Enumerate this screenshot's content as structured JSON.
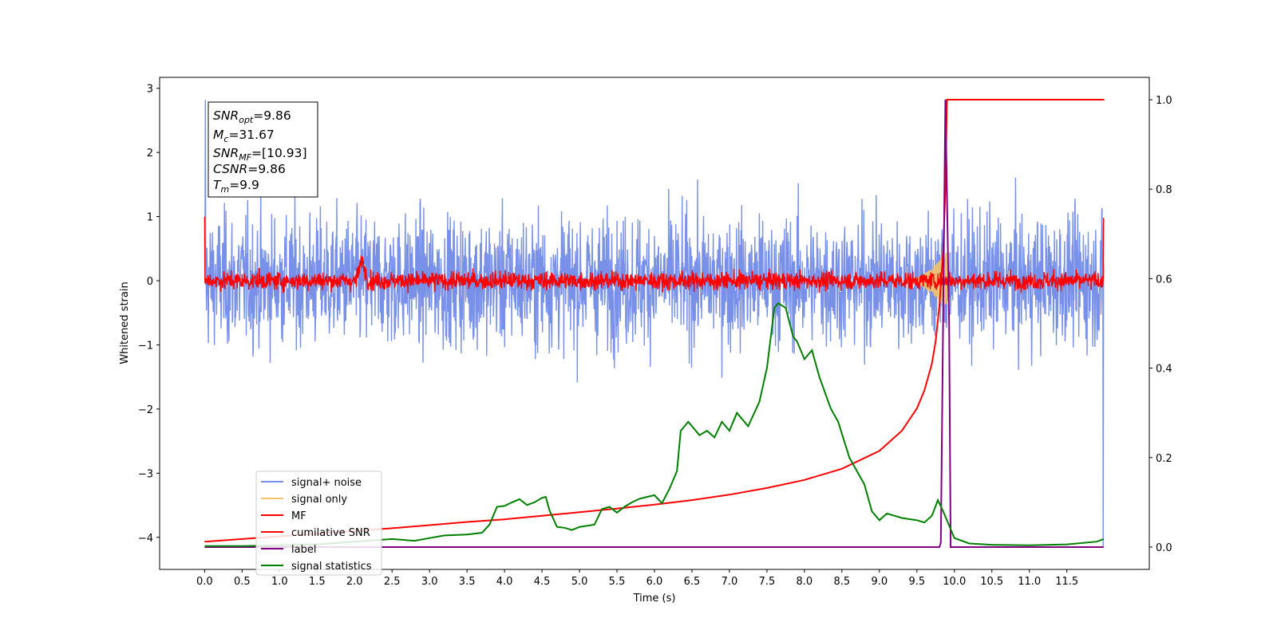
{
  "chart_data": {
    "type": "line",
    "title": "",
    "xlabel": "Time (s)",
    "ylabel": "Whitened strain",
    "ylabel_right": "",
    "xlim": [
      -0.6,
      12.6
    ],
    "ylim": [
      -4.5,
      3.17
    ],
    "ylim_right": [
      -0.05,
      1.05
    ],
    "x_ticks": [
      "0.0",
      "0.5",
      "1.0",
      "1.5",
      "2.0",
      "2.5",
      "3.0",
      "3.5",
      "4.0",
      "4.5",
      "5.0",
      "5.5",
      "6.0",
      "6.5",
      "7.0",
      "7.5",
      "8.0",
      "8.5",
      "9.0",
      "9.5",
      "10.0",
      "10.5",
      "11.0",
      "11.5"
    ],
    "y_ticks": [
      "3",
      "2",
      "1",
      "0",
      "−1",
      "−2",
      "−3",
      "−4"
    ],
    "y_ticks_right": [
      "1.0",
      "0.8",
      "0.6",
      "0.4",
      "0.2",
      "0.0"
    ],
    "grid": false,
    "legend_position": "lower-left",
    "annotation": {
      "lines": [
        {
          "label": "SNR",
          "sub": "opt",
          "value": "=9.86"
        },
        {
          "label": "M",
          "sub": "c",
          "value": "=31.67"
        },
        {
          "label": "SNR",
          "sub": "MF",
          "value": "=[10.93]"
        },
        {
          "label": "CSNR",
          "sub": "",
          "value": "=9.86"
        },
        {
          "label": "T",
          "sub": "m",
          "value": "=9.9"
        }
      ]
    },
    "series": [
      {
        "name": "signal+ noise",
        "axis": "left",
        "color": "#7890e8",
        "style": "noise",
        "x_start": 0.0,
        "x_end": 11.99,
        "std": 0.5,
        "max": 2.82,
        "min": -4.15
      },
      {
        "name": "signal only",
        "axis": "left",
        "color": "#f5c16c",
        "style": "chirp",
        "x_start": 9.3,
        "x_end": 9.9,
        "max_amplitude": 0.45
      },
      {
        "name": "MF",
        "axis": "left",
        "color": "#ff0000",
        "style": "noise",
        "x_start": 0.0,
        "x_end": 11.99,
        "std": 0.07,
        "start_value": 1.0,
        "end_value": 0.98,
        "bump_x": 2.1,
        "bump_value": 0.38
      },
      {
        "name": "cumilative SNR",
        "axis": "right",
        "color": "#ff0000",
        "style": "line",
        "x": [
          0.0,
          0.5,
          1.0,
          1.5,
          2.0,
          2.5,
          3.0,
          3.5,
          4.0,
          4.5,
          5.0,
          5.5,
          6.0,
          6.5,
          7.0,
          7.5,
          8.0,
          8.5,
          9.0,
          9.3,
          9.5,
          9.6,
          9.7,
          9.75,
          9.8,
          9.85,
          9.88,
          9.9,
          10.0,
          11.0,
          12.0
        ],
        "values": [
          0.012,
          0.018,
          0.024,
          0.03,
          0.036,
          0.042,
          0.049,
          0.056,
          0.062,
          0.07,
          0.078,
          0.086,
          0.095,
          0.105,
          0.117,
          0.132,
          0.15,
          0.175,
          0.215,
          0.26,
          0.31,
          0.35,
          0.41,
          0.46,
          0.54,
          0.66,
          0.8,
          1.0,
          1.0,
          1.0,
          1.0
        ]
      },
      {
        "name": "label",
        "axis": "right",
        "color": "#800080",
        "style": "line",
        "x": [
          0.0,
          9.8,
          9.82,
          9.88,
          9.93,
          9.95,
          11.99
        ],
        "values": [
          0.0,
          0.0,
          0.01,
          1.0,
          0.5,
          0.0,
          0.0
        ]
      },
      {
        "name": "signal statistics",
        "axis": "right",
        "color": "#008000",
        "style": "line",
        "x": [
          0.0,
          0.5,
          1.0,
          1.5,
          2.0,
          2.5,
          2.8,
          3.0,
          3.2,
          3.5,
          3.7,
          3.8,
          3.9,
          4.0,
          4.1,
          4.2,
          4.3,
          4.4,
          4.5,
          4.55,
          4.6,
          4.7,
          4.8,
          4.9,
          5.0,
          5.2,
          5.3,
          5.4,
          5.5,
          5.6,
          5.7,
          5.8,
          5.9,
          6.0,
          6.1,
          6.2,
          6.3,
          6.35,
          6.45,
          6.6,
          6.7,
          6.8,
          6.9,
          7.0,
          7.1,
          7.15,
          7.25,
          7.4,
          7.5,
          7.6,
          7.65,
          7.75,
          7.85,
          7.9,
          8.0,
          8.1,
          8.2,
          8.35,
          8.45,
          8.6,
          8.8,
          8.9,
          9.0,
          9.1,
          9.2,
          9.3,
          9.5,
          9.6,
          9.7,
          9.78,
          9.85,
          9.9,
          10.0,
          10.2,
          10.5,
          11.0,
          11.5,
          11.9,
          11.99
        ],
        "values": [
          0.002,
          0.002,
          0.004,
          0.006,
          0.012,
          0.018,
          0.014,
          0.02,
          0.026,
          0.028,
          0.032,
          0.05,
          0.09,
          0.092,
          0.1,
          0.107,
          0.094,
          0.1,
          0.11,
          0.112,
          0.082,
          0.045,
          0.043,
          0.038,
          0.045,
          0.05,
          0.085,
          0.09,
          0.077,
          0.09,
          0.1,
          0.108,
          0.112,
          0.116,
          0.098,
          0.13,
          0.17,
          0.26,
          0.28,
          0.25,
          0.26,
          0.245,
          0.28,
          0.26,
          0.3,
          0.29,
          0.27,
          0.325,
          0.4,
          0.535,
          0.545,
          0.535,
          0.47,
          0.46,
          0.42,
          0.44,
          0.38,
          0.31,
          0.28,
          0.2,
          0.14,
          0.08,
          0.06,
          0.075,
          0.07,
          0.065,
          0.06,
          0.055,
          0.07,
          0.105,
          0.08,
          0.06,
          0.02,
          0.008,
          0.005,
          0.004,
          0.006,
          0.012,
          0.018
        ]
      }
    ]
  }
}
